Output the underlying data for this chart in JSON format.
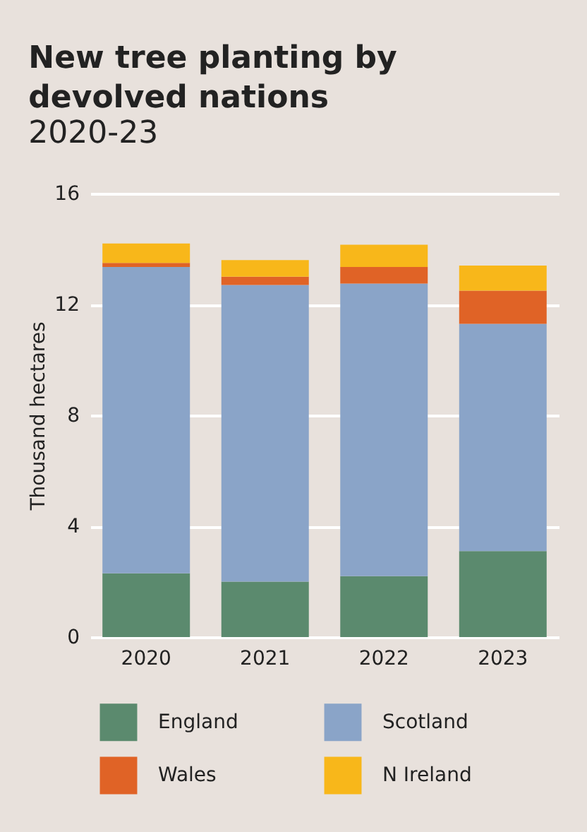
{
  "chart_data": {
    "type": "bar",
    "title": "New tree planting by devolved nations",
    "subtitle": "2020-23",
    "ylabel": "Thousand hectares",
    "categories": [
      "2020",
      "2021",
      "2022",
      "2023"
    ],
    "series": [
      {
        "name": "England",
        "color": "#5b8a6e",
        "values": [
          2.3,
          2.0,
          2.2,
          3.1
        ]
      },
      {
        "name": "Scotland",
        "color": "#8aa4c8",
        "values": [
          11.05,
          10.7,
          10.55,
          8.2
        ]
      },
      {
        "name": "Wales",
        "color": "#e06326",
        "values": [
          0.15,
          0.3,
          0.6,
          1.2
        ]
      },
      {
        "name": "N Ireland",
        "color": "#f8b71a",
        "values": [
          0.7,
          0.6,
          0.8,
          0.9
        ]
      }
    ],
    "stacked": true,
    "ylim": [
      0,
      16
    ],
    "yticks": [
      0,
      4,
      8,
      12,
      16
    ],
    "grid": "y",
    "legend": "bottom"
  }
}
